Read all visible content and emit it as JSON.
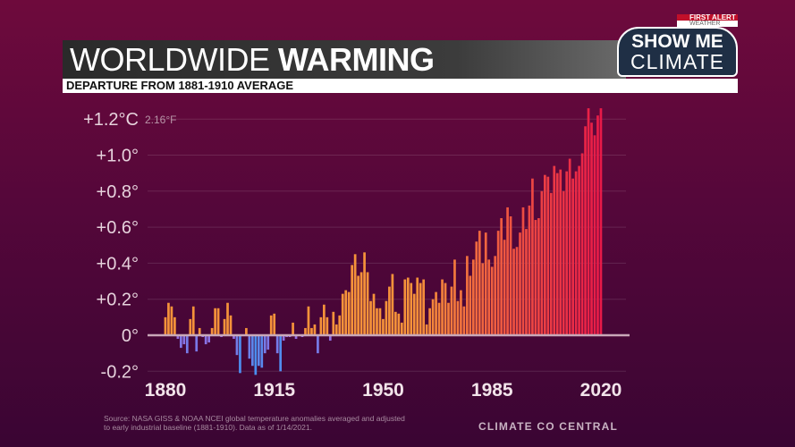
{
  "header": {
    "title_light": "WORLDWIDE ",
    "title_bold": "WARMING",
    "subtitle": "DEPARTURE FROM 1881-1910 AVERAGE"
  },
  "logo": {
    "line1": "SHOW ME",
    "line2": "CLIMATE",
    "alert_line1": "FIRST ALERT",
    "alert_line2": "WEATHER"
  },
  "footer": {
    "source": "Source: NASA GISS & NOAA NCEI global temperature anomalies averaged and adjusted to early industrial baseline (1881-1910). Data as of 1/14/2021.",
    "brand": "CLIMATE CO CENTRAL"
  },
  "colors": {
    "negative_low": "#4a8ff0",
    "negative_high": "#9a6ae0",
    "positive_early": "#f5923a",
    "positive_late": "#e81a48",
    "axis": "#c9a8b8"
  },
  "chart_data": {
    "type": "bar",
    "title": "WORLDWIDE WARMING",
    "subtitle": "DEPARTURE FROM 1881-1910 AVERAGE",
    "ylim": [
      -0.2,
      1.2
    ],
    "xlim": [
      1880,
      2020
    ],
    "yticks": [
      "-0.2°",
      "0°",
      "+0.2°",
      "+0.4°",
      "+0.6°",
      "+0.8°",
      "+1.0°",
      "+1.2°C"
    ],
    "ytick_values": [
      -0.2,
      0,
      0.2,
      0.4,
      0.6,
      0.8,
      1.0,
      1.2
    ],
    "top_annotation": "2.16°F",
    "xticks": [
      "1880",
      "1915",
      "1950",
      "1985",
      "2020"
    ],
    "xtick_values": [
      1880,
      1915,
      1950,
      1985,
      2020
    ],
    "grid": true,
    "unit": "°C",
    "start_year": 1880,
    "values": [
      0.1,
      0.18,
      0.16,
      0.1,
      -0.02,
      -0.07,
      -0.05,
      -0.1,
      0.09,
      0.16,
      -0.09,
      0.04,
      -0.01,
      -0.05,
      -0.04,
      0.04,
      0.15,
      0.15,
      -0.01,
      0.09,
      0.18,
      0.11,
      -0.02,
      -0.11,
      -0.21,
      0.0,
      0.04,
      -0.13,
      -0.17,
      -0.22,
      -0.17,
      -0.18,
      -0.1,
      -0.08,
      0.11,
      0.12,
      -0.1,
      -0.2,
      -0.03,
      -0.01,
      -0.01,
      0.07,
      -0.02,
      0.0,
      -0.01,
      0.04,
      0.16,
      0.04,
      0.06,
      -0.1,
      0.1,
      0.17,
      0.1,
      -0.03,
      0.13,
      0.06,
      0.11,
      0.23,
      0.25,
      0.24,
      0.39,
      0.45,
      0.33,
      0.35,
      0.46,
      0.35,
      0.19,
      0.23,
      0.15,
      0.15,
      0.09,
      0.19,
      0.27,
      0.34,
      0.13,
      0.12,
      0.07,
      0.31,
      0.32,
      0.29,
      0.23,
      0.32,
      0.29,
      0.31,
      0.06,
      0.15,
      0.2,
      0.24,
      0.18,
      0.31,
      0.29,
      0.18,
      0.27,
      0.42,
      0.19,
      0.25,
      0.16,
      0.44,
      0.33,
      0.42,
      0.52,
      0.58,
      0.4,
      0.57,
      0.42,
      0.38,
      0.44,
      0.58,
      0.65,
      0.53,
      0.71,
      0.66,
      0.48,
      0.49,
      0.57,
      0.71,
      0.59,
      0.72,
      0.87,
      0.64,
      0.65,
      0.8,
      0.89,
      0.88,
      0.79,
      0.94,
      0.9,
      0.92,
      0.8,
      0.91,
      0.98,
      0.87,
      0.91,
      0.94,
      1.01,
      1.16,
      1.26,
      1.18,
      1.11,
      1.22,
      1.26
    ]
  }
}
